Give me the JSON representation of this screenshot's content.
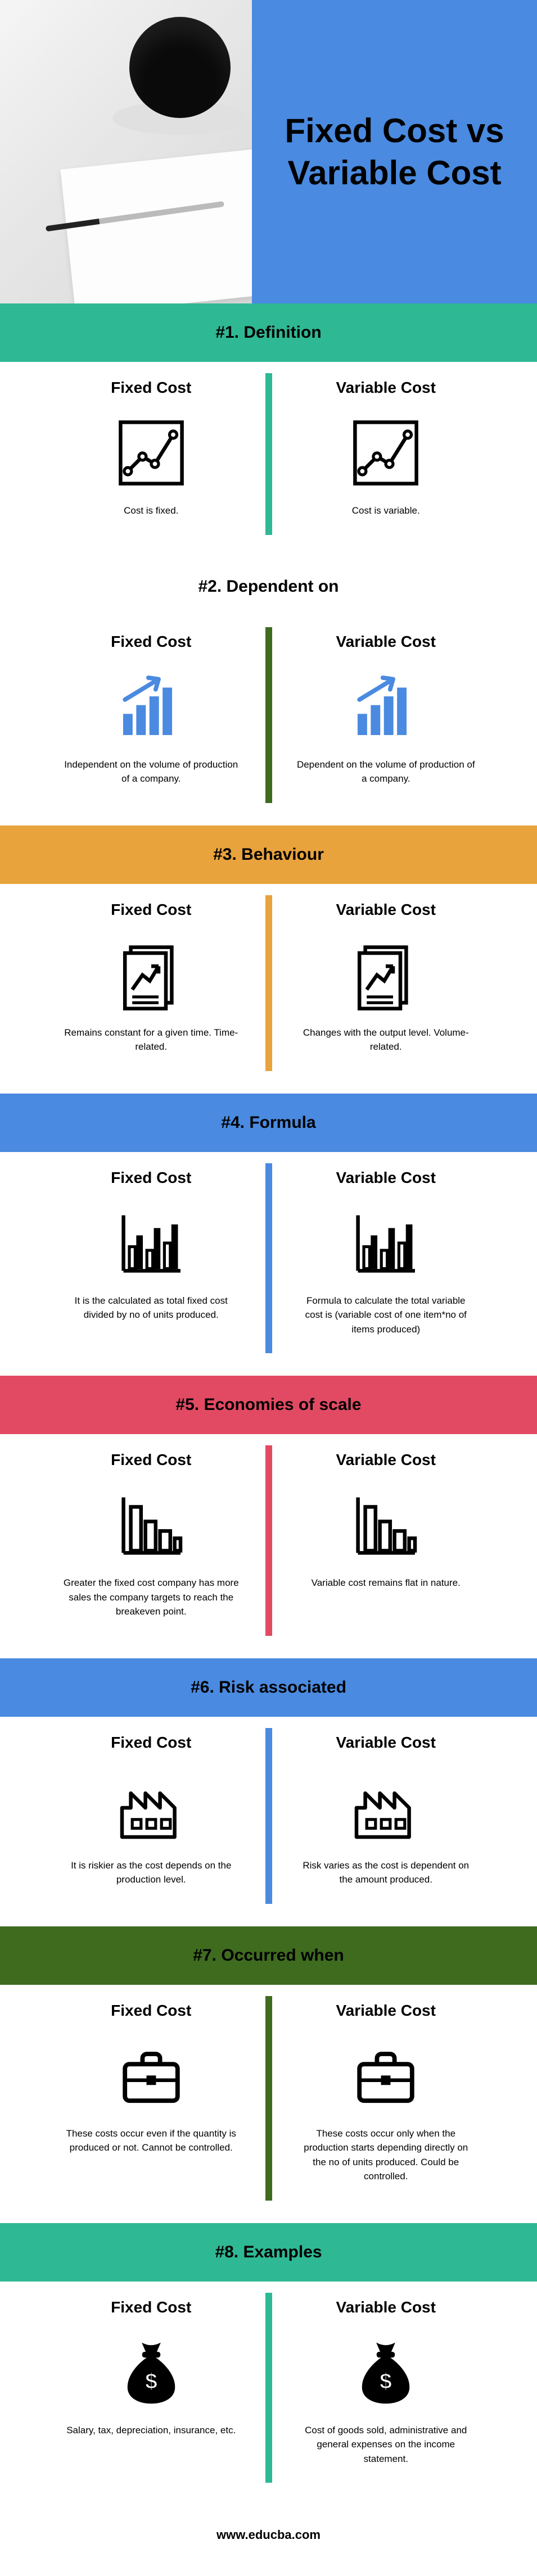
{
  "hero": {
    "title": "Fixed Cost vs Variable Cost",
    "title_bg": "#4a8ae0",
    "title_color": "#000000"
  },
  "sections": [
    {
      "id": "definition",
      "head": "#1. Definition",
      "head_bg": "#2fb894",
      "divider": "#2fb894",
      "left_title": "Fixed Cost",
      "left_desc": "Cost is fixed.",
      "right_title": "Variable Cost",
      "right_desc": "Cost is variable.",
      "icon": "line-chart"
    },
    {
      "id": "dependent",
      "head": "#2. Dependent on",
      "head_bg": "#ffffff",
      "divider": "#3f6b1f",
      "left_title": "Fixed Cost",
      "left_desc": "Independent on the volume of production of a company.",
      "right_title": "Variable Cost",
      "right_desc": "Dependent on the volume of production of a company.",
      "icon": "bar-up",
      "icon_color": "#4a8ae0"
    },
    {
      "id": "behaviour",
      "head": "#3. Behaviour",
      "head_bg": "#e8a33d",
      "divider": "#e8a33d",
      "left_title": "Fixed Cost",
      "left_desc": "Remains constant for a given time. Time-related.",
      "right_title": "Variable Cost",
      "right_desc": "Changes with the output level. Volume-related.",
      "icon": "doc-chart"
    },
    {
      "id": "formula",
      "head": "#4. Formula",
      "head_bg": "#4a8ae0",
      "divider": "#4a8ae0",
      "left_title": "Fixed Cost",
      "left_desc": "It is the calculated as total fixed cost divided by no of units produced.",
      "right_title": "Variable Cost",
      "right_desc": "Formula to calculate the total variable cost is (variable cost of one item*no of items produced)",
      "icon": "mixed-bars"
    },
    {
      "id": "economies",
      "head": "#5. Economies of scale",
      "head_bg": "#e24a63",
      "divider": "#e24a63",
      "left_title": "Fixed Cost",
      "left_desc": "Greater the fixed cost company has more sales the company targets to reach the breakeven point.",
      "right_title": "Variable Cost",
      "right_desc": "Variable cost remains flat in nature.",
      "icon": "bars-down"
    },
    {
      "id": "risk",
      "head": "#6. Risk associated",
      "head_bg": "#4a8ae0",
      "divider": "#4a8ae0",
      "left_title": "Fixed Cost",
      "left_desc": "It is riskier as the cost depends on the production level.",
      "right_title": "Variable Cost",
      "right_desc": "Risk varies as the cost is dependent on the amount produced.",
      "icon": "factory"
    },
    {
      "id": "occurred",
      "head": "#7. Occurred when",
      "head_bg": "#3f6b1f",
      "divider": "#3f6b1f",
      "left_title": "Fixed Cost",
      "left_desc": "These costs occur even if the quantity is produced or not. Cannot be controlled.",
      "right_title": "Variable Cost",
      "right_desc": "These costs occur only when the production starts depending directly on the no of units produced. Could be controlled.",
      "icon": "briefcase"
    },
    {
      "id": "examples",
      "head": "#8. Examples",
      "head_bg": "#2fb894",
      "divider": "#2fb894",
      "left_title": "Fixed Cost",
      "left_desc": "Salary, tax, depreciation, insurance, etc.",
      "right_title": "Variable Cost",
      "right_desc": "Cost of goods sold, administrative and general expenses on the income statement.",
      "icon": "money-bag"
    }
  ],
  "footer": "www.educba.com"
}
